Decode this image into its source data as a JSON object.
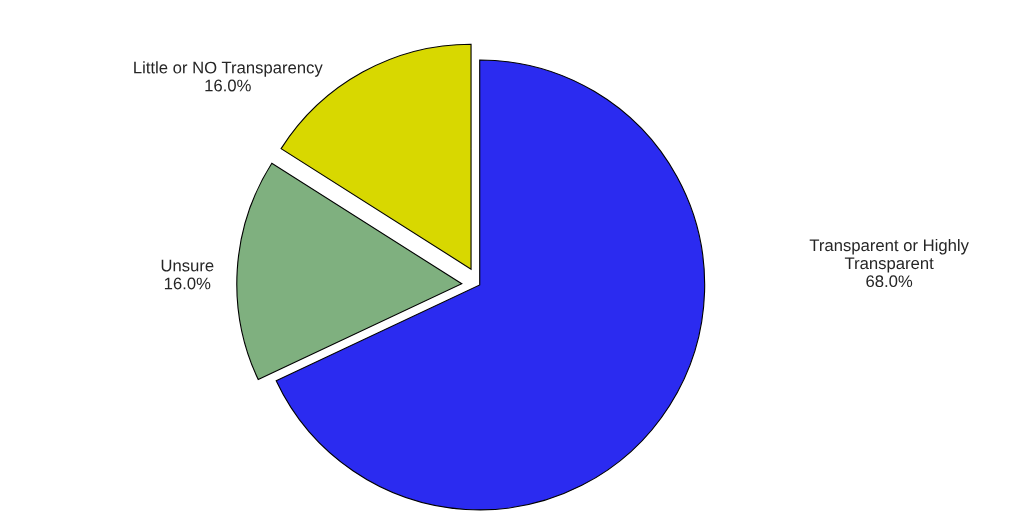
{
  "chart_data": {
    "type": "pie",
    "categories": [
      "Transparent or Highly\nTransparent",
      "Unsure",
      "Little or NO Transparency"
    ],
    "values": [
      68.0,
      16.0,
      16.0
    ],
    "value_labels": [
      "68.0%",
      "16.0%",
      "16.0%"
    ],
    "colors": [
      "#2b2bf0",
      "#7fb07f",
      "#d8d800"
    ],
    "legend": false
  }
}
